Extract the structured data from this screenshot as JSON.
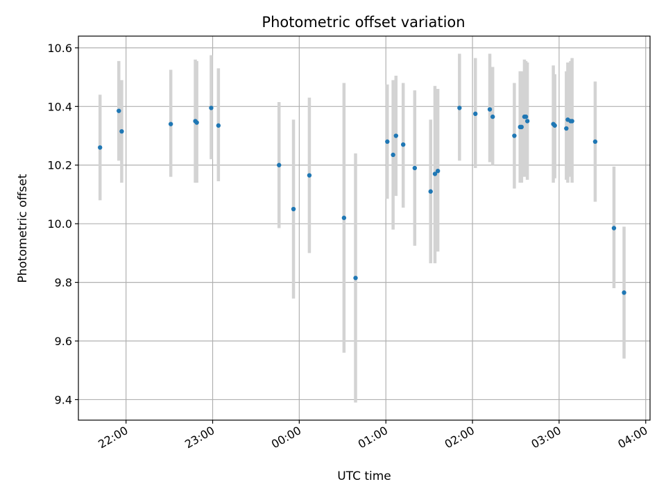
{
  "chart_data": {
    "type": "scatter",
    "title": "Photometric offset variation",
    "xlabel": "UTC time",
    "ylabel": "Photometric offset",
    "x_ticks": [
      "22:00",
      "23:00",
      "00:00",
      "01:00",
      "02:00",
      "03:00",
      "04:00"
    ],
    "y_ticks": [
      "9.4",
      "9.6",
      "9.8",
      "10.0",
      "10.2",
      "10.4",
      "10.6"
    ],
    "xlim": [
      "21:27",
      "04:03"
    ],
    "ylim": [
      9.33,
      10.64
    ],
    "grid": true,
    "colors": {
      "point": "#1f77b4",
      "errorbar": "#d3d3d3",
      "grid": "#b0b0b0"
    },
    "points": [
      {
        "x": "21:42",
        "y": 10.26,
        "lo": 10.08,
        "hi": 10.44
      },
      {
        "x": "21:55",
        "y": 10.385,
        "lo": 10.215,
        "hi": 10.555
      },
      {
        "x": "21:57",
        "y": 10.315,
        "lo": 10.14,
        "hi": 10.49
      },
      {
        "x": "22:31",
        "y": 10.34,
        "lo": 10.16,
        "hi": 10.525
      },
      {
        "x": "22:48",
        "y": 10.35,
        "lo": 10.14,
        "hi": 10.56
      },
      {
        "x": "22:49",
        "y": 10.345,
        "lo": 10.14,
        "hi": 10.555
      },
      {
        "x": "22:59",
        "y": 10.395,
        "lo": 10.22,
        "hi": 10.575
      },
      {
        "x": "23:04",
        "y": 10.335,
        "lo": 10.145,
        "hi": 10.53
      },
      {
        "x": "23:46",
        "y": 10.2,
        "lo": 9.985,
        "hi": 10.415
      },
      {
        "x": "23:56",
        "y": 10.05,
        "lo": 9.745,
        "hi": 10.355
      },
      {
        "x": "00:07",
        "y": 10.165,
        "lo": 9.9,
        "hi": 10.43
      },
      {
        "x": "00:31",
        "y": 10.02,
        "lo": 9.56,
        "hi": 10.48
      },
      {
        "x": "00:39",
        "y": 9.815,
        "lo": 9.39,
        "hi": 10.24
      },
      {
        "x": "01:01",
        "y": 10.28,
        "lo": 10.085,
        "hi": 10.475
      },
      {
        "x": "01:05",
        "y": 10.235,
        "lo": 9.98,
        "hi": 10.49
      },
      {
        "x": "01:07",
        "y": 10.3,
        "lo": 10.095,
        "hi": 10.505
      },
      {
        "x": "01:12",
        "y": 10.27,
        "lo": 10.055,
        "hi": 10.48
      },
      {
        "x": "01:20",
        "y": 10.19,
        "lo": 9.925,
        "hi": 10.455
      },
      {
        "x": "01:31",
        "y": 10.11,
        "lo": 9.865,
        "hi": 10.355
      },
      {
        "x": "01:34",
        "y": 10.17,
        "lo": 9.865,
        "hi": 10.47
      },
      {
        "x": "01:36",
        "y": 10.18,
        "lo": 9.905,
        "hi": 10.46
      },
      {
        "x": "01:51",
        "y": 10.395,
        "lo": 10.215,
        "hi": 10.58
      },
      {
        "x": "02:02",
        "y": 10.375,
        "lo": 10.19,
        "hi": 10.565
      },
      {
        "x": "02:12",
        "y": 10.39,
        "lo": 10.21,
        "hi": 10.58
      },
      {
        "x": "02:14",
        "y": 10.365,
        "lo": 10.2,
        "hi": 10.535
      },
      {
        "x": "02:29",
        "y": 10.3,
        "lo": 10.12,
        "hi": 10.48
      },
      {
        "x": "02:33",
        "y": 10.33,
        "lo": 10.14,
        "hi": 10.52
      },
      {
        "x": "02:34",
        "y": 10.33,
        "lo": 10.14,
        "hi": 10.52
      },
      {
        "x": "02:36",
        "y": 10.365,
        "lo": 10.16,
        "hi": 10.56
      },
      {
        "x": "02:37",
        "y": 10.365,
        "lo": 10.175,
        "hi": 10.555
      },
      {
        "x": "02:38",
        "y": 10.35,
        "lo": 10.15,
        "hi": 10.55
      },
      {
        "x": "02:56",
        "y": 10.34,
        "lo": 10.14,
        "hi": 10.54
      },
      {
        "x": "02:57",
        "y": 10.335,
        "lo": 10.155,
        "hi": 10.51
      },
      {
        "x": "03:05",
        "y": 10.325,
        "lo": 10.15,
        "hi": 10.52
      },
      {
        "x": "03:06",
        "y": 10.355,
        "lo": 10.14,
        "hi": 10.55
      },
      {
        "x": "03:08",
        "y": 10.35,
        "lo": 10.16,
        "hi": 10.555
      },
      {
        "x": "03:09",
        "y": 10.35,
        "lo": 10.14,
        "hi": 10.565
      },
      {
        "x": "03:25",
        "y": 10.28,
        "lo": 10.075,
        "hi": 10.485
      },
      {
        "x": "03:38",
        "y": 9.985,
        "lo": 9.78,
        "hi": 10.195
      },
      {
        "x": "03:45",
        "y": 9.765,
        "lo": 9.54,
        "hi": 9.99
      }
    ]
  }
}
